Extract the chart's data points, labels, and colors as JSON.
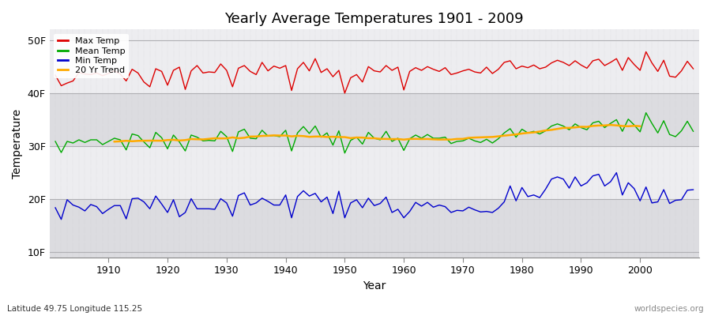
{
  "title": "Yearly Average Temperatures 1901 - 2009",
  "xlabel": "Year",
  "ylabel": "Temperature",
  "start_year": 1901,
  "end_year": 2009,
  "yticks": [
    10,
    20,
    30,
    40,
    50
  ],
  "ytick_labels": [
    "10F",
    "20F",
    "30F",
    "40F",
    "50F"
  ],
  "ylim": [
    9,
    52
  ],
  "xlim": [
    1900,
    2010
  ],
  "bg_color": "#e8e8eb",
  "band_light": "#ededf0",
  "band_dark": "#dcdce0",
  "grid_color": "#c8c8cc",
  "max_color": "#dd0000",
  "mean_color": "#00aa00",
  "min_color": "#0000cc",
  "trend_color": "#ffaa00",
  "legend_labels": [
    "Max Temp",
    "Mean Temp",
    "Min Temp",
    "20 Yr Trend"
  ],
  "bottom_left_text": "Latitude 49.75 Longitude 115.25",
  "bottom_right_text": "worldspecies.org",
  "max_temp": [
    43.4,
    41.4,
    41.9,
    42.3,
    43.9,
    43.6,
    43.5,
    43.8,
    43.3,
    43.7,
    44.2,
    43.6,
    42.3,
    44.5,
    43.8,
    42.1,
    41.2,
    44.6,
    44.1,
    41.5,
    44.3,
    44.9,
    40.7,
    44.2,
    45.2,
    43.8,
    44.0,
    43.9,
    45.5,
    44.3,
    41.2,
    44.7,
    45.2,
    44.1,
    43.5,
    45.8,
    44.2,
    45.1,
    44.7,
    45.2,
    40.5,
    44.6,
    45.8,
    44.2,
    46.5,
    43.9,
    44.6,
    43.1,
    44.3,
    40.0,
    42.9,
    43.5,
    42.1,
    45.0,
    44.2,
    44.0,
    45.2,
    44.3,
    44.9,
    40.6,
    44.1,
    44.8,
    44.3,
    45.0,
    44.5,
    44.1,
    44.8,
    43.5,
    43.8,
    44.2,
    44.5,
    44.0,
    43.8,
    44.9,
    43.7,
    44.5,
    45.8,
    46.1,
    44.6,
    45.1,
    44.8,
    45.3,
    44.6,
    44.9,
    45.7,
    46.2,
    45.8,
    45.2,
    46.1,
    45.3,
    44.7,
    46.1,
    46.4,
    45.2,
    45.8,
    46.5,
    44.3,
    46.7,
    45.4,
    44.3,
    47.8,
    45.7,
    44.1,
    46.2,
    43.2,
    43.0,
    44.2,
    46.0,
    44.6
  ],
  "mean_temp": [
    30.9,
    28.8,
    30.9,
    30.6,
    31.2,
    30.7,
    31.2,
    31.2,
    30.3,
    30.9,
    31.5,
    31.2,
    29.3,
    32.3,
    32.0,
    30.8,
    29.7,
    32.6,
    31.6,
    29.5,
    32.1,
    30.8,
    29.1,
    32.1,
    31.7,
    31.0,
    31.1,
    31.0,
    32.8,
    31.8,
    29.0,
    32.7,
    33.2,
    31.5,
    31.4,
    33.0,
    31.9,
    32.0,
    31.8,
    33.0,
    29.1,
    32.5,
    33.7,
    32.4,
    33.8,
    31.7,
    32.5,
    30.2,
    32.9,
    28.7,
    31.1,
    31.7,
    30.4,
    32.6,
    31.5,
    31.2,
    32.8,
    30.9,
    31.5,
    29.2,
    31.4,
    32.1,
    31.5,
    32.2,
    31.5,
    31.5,
    31.7,
    30.5,
    30.9,
    31.0,
    31.5,
    31.0,
    30.7,
    31.3,
    30.6,
    31.4,
    32.5,
    33.3,
    31.7,
    33.2,
    32.5,
    32.8,
    32.3,
    32.9,
    33.8,
    34.2,
    33.8,
    33.1,
    34.2,
    33.5,
    33.1,
    34.4,
    34.7,
    33.5,
    34.3,
    35.0,
    32.8,
    35.1,
    34.0,
    32.7,
    36.3,
    34.3,
    32.5,
    34.8,
    32.2,
    31.8,
    32.9,
    34.7,
    32.8
  ],
  "min_temp": [
    18.4,
    16.2,
    19.9,
    18.9,
    18.5,
    17.8,
    19.0,
    18.6,
    17.3,
    18.1,
    18.8,
    18.8,
    16.3,
    20.1,
    20.2,
    19.5,
    18.2,
    20.6,
    19.1,
    17.5,
    19.9,
    16.7,
    17.5,
    20.1,
    18.2,
    18.2,
    18.2,
    18.1,
    20.1,
    19.3,
    16.8,
    20.7,
    21.2,
    18.9,
    19.3,
    20.2,
    19.6,
    18.9,
    18.9,
    20.8,
    16.5,
    20.5,
    21.6,
    20.6,
    21.1,
    19.5,
    20.4,
    17.3,
    21.5,
    16.5,
    19.3,
    19.9,
    18.4,
    20.2,
    18.8,
    19.2,
    20.4,
    17.5,
    18.1,
    16.5,
    17.7,
    19.4,
    18.7,
    19.4,
    18.5,
    18.9,
    18.6,
    17.5,
    17.9,
    17.8,
    18.5,
    18.0,
    17.6,
    17.7,
    17.5,
    18.3,
    19.5,
    22.5,
    19.7,
    22.2,
    20.5,
    20.8,
    20.3,
    21.9,
    23.8,
    24.2,
    23.8,
    22.1,
    24.2,
    22.5,
    23.1,
    24.4,
    24.7,
    22.5,
    23.3,
    25.0,
    20.8,
    23.1,
    22.0,
    19.7,
    22.3,
    19.3,
    19.5,
    21.8,
    19.2,
    19.8,
    19.9,
    21.7,
    21.8
  ],
  "noise_seed": 42
}
